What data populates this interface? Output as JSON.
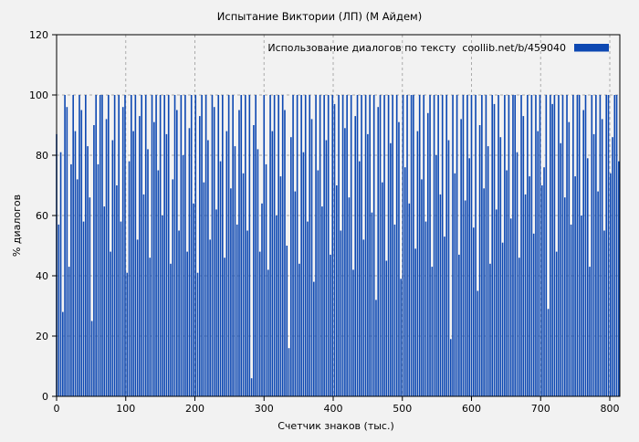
{
  "colors": {
    "background": "#f2f2f2",
    "frame": "#000000",
    "text": "#000000"
  },
  "chart_data": {
    "type": "bar",
    "title": "Испытание Виктории (ЛП) (М Айдем)",
    "xlabel": "Счетчик знаков (тыс.)",
    "ylabel": "% диалогов",
    "legend_label": "Использование диалогов по тексту  coollib.net/b/459040",
    "legend_position": "top-right-inside",
    "bar_color": "#0d48b2",
    "grid": true,
    "grid_color": "#ababab",
    "xlim": [
      0,
      814
    ],
    "ylim": [
      0,
      120
    ],
    "xticks": [
      0,
      100,
      200,
      300,
      400,
      500,
      600,
      700,
      800
    ],
    "yticks": [
      0,
      20,
      40,
      60,
      80,
      100,
      120
    ],
    "x_start": 0,
    "x_step": 3,
    "values": [
      87,
      57,
      81,
      28,
      100,
      96,
      43,
      77,
      100,
      88,
      72,
      100,
      95,
      58,
      100,
      83,
      66,
      25,
      90,
      100,
      77,
      100,
      100,
      63,
      92,
      100,
      48,
      85,
      100,
      70,
      100,
      58,
      96,
      100,
      41,
      78,
      100,
      88,
      100,
      52,
      93,
      100,
      67,
      100,
      82,
      46,
      100,
      91,
      100,
      75,
      100,
      60,
      100,
      87,
      100,
      44,
      72,
      100,
      95,
      55,
      100,
      80,
      100,
      48,
      89,
      100,
      64,
      100,
      41,
      93,
      100,
      71,
      100,
      85,
      52,
      100,
      96,
      62,
      100,
      78,
      100,
      46,
      88,
      100,
      69,
      100,
      83,
      57,
      95,
      100,
      74,
      100,
      55,
      100,
      6,
      90,
      100,
      82,
      48,
      64,
      100,
      77,
      42,
      100,
      88,
      100,
      60,
      100,
      73,
      100,
      95,
      50,
      16,
      86,
      100,
      68,
      100,
      44,
      100,
      81,
      100,
      58,
      100,
      92,
      38,
      100,
      75,
      100,
      63,
      100,
      85,
      100,
      47,
      100,
      97,
      70,
      100,
      55,
      100,
      89,
      100,
      66,
      100,
      42,
      93,
      100,
      78,
      100,
      52,
      100,
      87,
      100,
      61,
      100,
      32,
      96,
      100,
      71,
      100,
      45,
      100,
      84,
      100,
      57,
      100,
      91,
      39,
      100,
      76,
      100,
      64,
      100,
      100,
      49,
      88,
      100,
      72,
      100,
      58,
      94,
      100,
      43,
      100,
      80,
      100,
      67,
      100,
      53,
      100,
      85,
      19,
      100,
      74,
      100,
      47,
      92,
      100,
      65,
      100,
      79,
      100,
      56,
      100,
      35,
      90,
      100,
      69,
      100,
      83,
      44,
      100,
      97,
      62,
      100,
      86,
      51,
      100,
      75,
      100,
      59,
      100,
      100,
      81,
      46,
      100,
      93,
      67,
      100,
      73,
      100,
      54,
      100,
      88,
      100,
      70,
      76,
      100,
      29,
      100,
      97,
      100,
      48,
      100,
      84,
      100,
      66,
      100,
      91,
      57,
      100,
      73,
      100,
      100,
      60,
      95,
      100,
      79,
      43,
      100,
      87,
      100,
      68,
      100,
      92,
      55,
      100,
      100,
      74,
      86,
      100,
      100,
      78
    ]
  }
}
